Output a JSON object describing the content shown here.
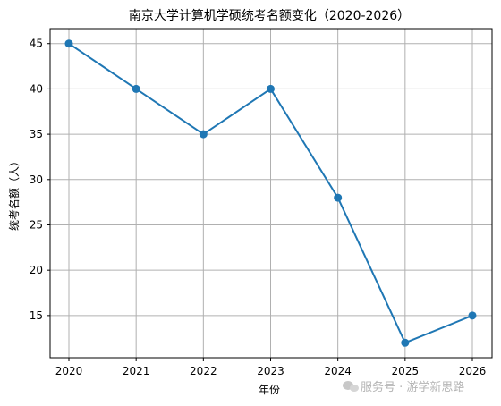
{
  "chart_data": {
    "type": "line",
    "title": "南京大学计算机学硕统考名额变化（2020-2026）",
    "xlabel": "年份",
    "ylabel": "统考名额（人）",
    "categories": [
      "2020",
      "2021",
      "2022",
      "2023",
      "2024",
      "2025",
      "2026"
    ],
    "series": [
      {
        "values": [
          45,
          40,
          35,
          40,
          28,
          12,
          15
        ]
      }
    ],
    "ylim": [
      10.35,
      46.65
    ],
    "yticks": [
      15,
      20,
      25,
      30,
      35,
      40,
      45
    ],
    "grid": true,
    "line_color": "#1f77b4",
    "marker": "circle"
  },
  "watermark": {
    "text": "服务号 · 游学新思路",
    "icon": "wechat-icon"
  }
}
